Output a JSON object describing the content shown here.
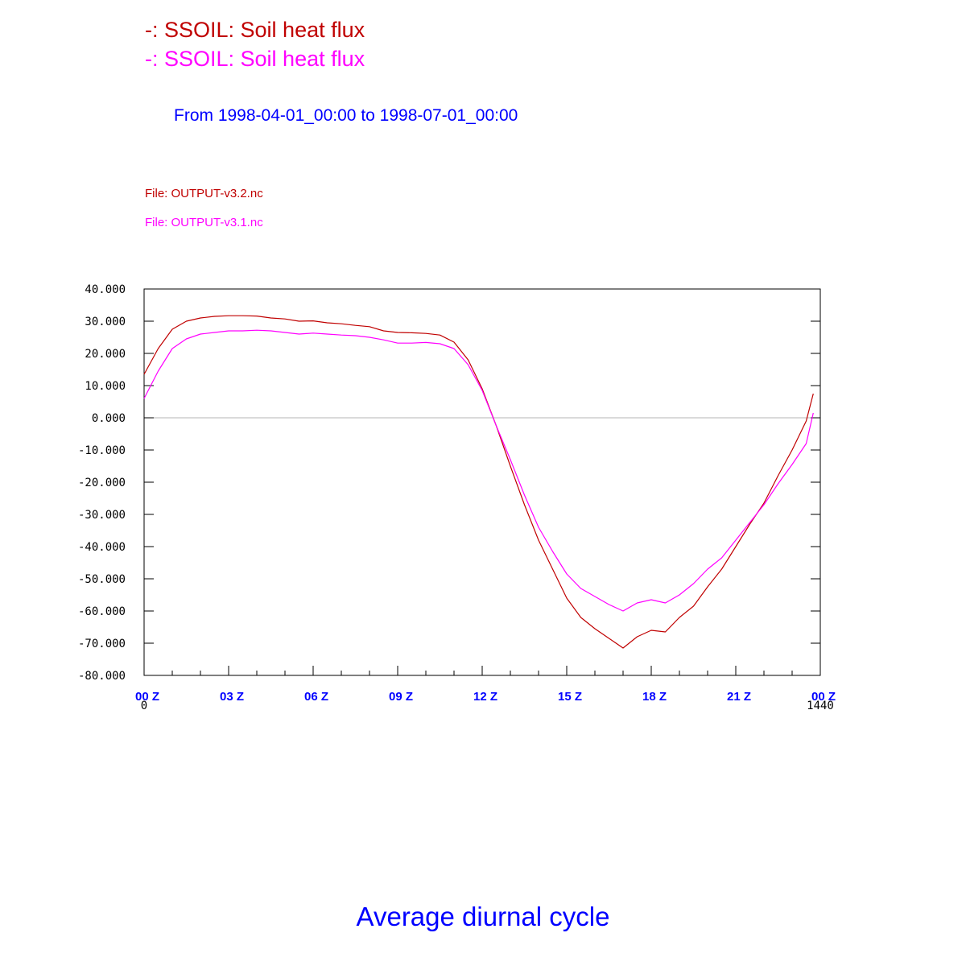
{
  "legend": [
    {
      "text": "-: SSOIL: Soil heat flux",
      "color": "#c00000"
    },
    {
      "text": "-: SSOIL: Soil heat flux",
      "color": "#ff00ff"
    }
  ],
  "date_range": "From 1998-04-01_00:00 to 1998-07-01_00:00",
  "files": [
    {
      "text": "File: OUTPUT-v3.2.nc",
      "color": "#c00000"
    },
    {
      "text": "File: OUTPUT-v3.1.nc",
      "color": "#ff00ff"
    }
  ],
  "bottom_title": "Average diurnal cycle",
  "chart_data": {
    "type": "line",
    "xlim": [
      0,
      24
    ],
    "ylim": [
      -80,
      40
    ],
    "yticks": [
      40,
      30,
      20,
      10,
      0,
      -10,
      -20,
      -30,
      -40,
      -50,
      -60,
      -70,
      -80
    ],
    "ytick_labels": [
      "40.000",
      "30.000",
      "20.000",
      "10.000",
      "0.000",
      "-10.000",
      "-20.000",
      "-30.000",
      "-40.000",
      "-50.000",
      "-60.000",
      "-70.000",
      "-80.000"
    ],
    "xticks": [
      0,
      3,
      6,
      9,
      12,
      15,
      18,
      21,
      24
    ],
    "xtick_labels": [
      "00 Z",
      "03 Z",
      "06 Z",
      "09 Z",
      "12 Z",
      "15 Z",
      "18 Z",
      "21 Z",
      "00 Z"
    ],
    "x_extra_labels": [
      {
        "x": 0,
        "text": "0"
      },
      {
        "x": 24,
        "text": "1440"
      }
    ],
    "zero_line": true,
    "grid": false,
    "tick_color": "#000000",
    "xtick_label_color": "#0000ff",
    "series": [
      {
        "color": "#c00000",
        "x": [
          0,
          0.5,
          1,
          1.5,
          2,
          2.5,
          3,
          3.5,
          4,
          4.5,
          5,
          5.5,
          6,
          6.5,
          7,
          7.5,
          8,
          8.5,
          9,
          9.5,
          10,
          10.5,
          11,
          11.5,
          12,
          12.5,
          13,
          13.5,
          14,
          14.5,
          15,
          15.5,
          16,
          16.5,
          17,
          17.5,
          18,
          18.5,
          19,
          19.5,
          20,
          20.5,
          21,
          21.5,
          22,
          22.5,
          23,
          23.5,
          23.75
        ],
        "y": [
          13.5,
          21.5,
          27.5,
          30.0,
          31.0,
          31.5,
          31.7,
          31.7,
          31.6,
          31.0,
          30.7,
          30.0,
          30.1,
          29.5,
          29.2,
          28.7,
          28.3,
          27.0,
          26.5,
          26.4,
          26.2,
          25.7,
          23.5,
          18.0,
          9.0,
          -2.5,
          -15.0,
          -27.0,
          -38.0,
          -47.0,
          -56.0,
          -62.0,
          -65.5,
          -68.5,
          -71.5,
          -68.0,
          -66.0,
          -66.5,
          -62.0,
          -58.5,
          -52.5,
          -47.0,
          -40.0,
          -33.0,
          -26.5,
          -18.0,
          -10.0,
          -1.0,
          7.5
        ]
      },
      {
        "color": "#ff00ff",
        "x": [
          0,
          0.5,
          1,
          1.5,
          2,
          2.5,
          3,
          3.5,
          4,
          4.5,
          5,
          5.5,
          6,
          6.5,
          7,
          7.5,
          8,
          8.5,
          9,
          9.5,
          10,
          10.5,
          11,
          11.5,
          12,
          12.5,
          13,
          13.5,
          14,
          14.5,
          15,
          15.5,
          16,
          16.5,
          17,
          17.5,
          18,
          18.5,
          19,
          19.5,
          20,
          20.5,
          21,
          21.5,
          22,
          22.5,
          23,
          23.5,
          23.75
        ],
        "y": [
          6.0,
          14.5,
          21.5,
          24.5,
          26.0,
          26.5,
          27.0,
          27.0,
          27.2,
          27.0,
          26.5,
          26.0,
          26.3,
          26.0,
          25.7,
          25.5,
          25.0,
          24.2,
          23.2,
          23.2,
          23.4,
          23.0,
          21.5,
          16.5,
          8.5,
          -2.5,
          -13.0,
          -24.0,
          -34.0,
          -41.5,
          -48.5,
          -53.0,
          -55.5,
          -58.0,
          -60.0,
          -57.5,
          -56.5,
          -57.5,
          -55.0,
          -51.5,
          -47.0,
          -43.5,
          -38.0,
          -32.5,
          -27.0,
          -20.5,
          -14.5,
          -8.0,
          1.5
        ]
      }
    ]
  }
}
